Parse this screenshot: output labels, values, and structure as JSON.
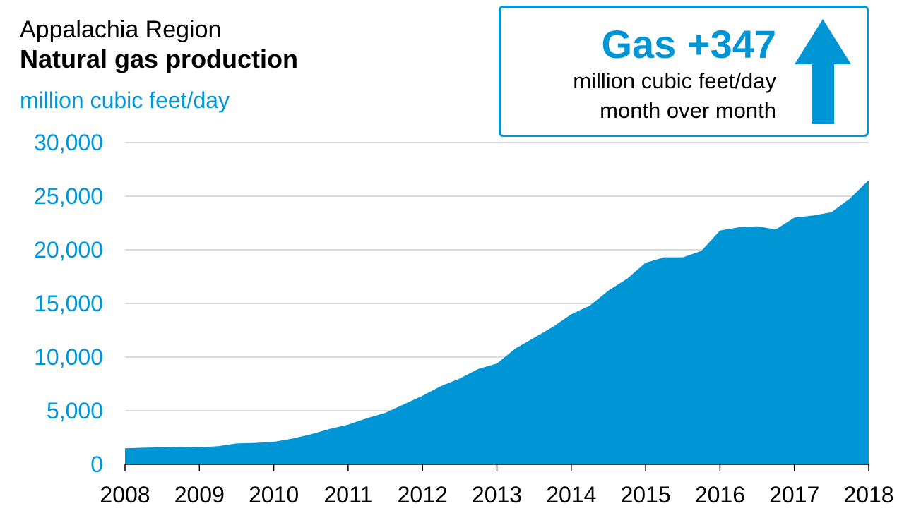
{
  "title_block": {
    "region": "Appalachia Region",
    "title": "Natural gas production",
    "unit": "million cubic feet/day"
  },
  "callout": {
    "headline": "Gas +347",
    "line1": "million cubic feet/day",
    "line2": "month over month",
    "arrow_icon": "arrow-up-icon",
    "color": "#0096d6"
  },
  "chart_data": {
    "type": "area",
    "title": "Natural gas production",
    "ylabel": "million cubic feet/day",
    "xlabel": "",
    "x_ticks": [
      "2008",
      "2009",
      "2010",
      "2011",
      "2012",
      "2013",
      "2014",
      "2015",
      "2016",
      "2017",
      "2018"
    ],
    "y_ticks": [
      "0",
      "5,000",
      "10,000",
      "15,000",
      "20,000",
      "25,000",
      "30,000"
    ],
    "xlim": [
      2008,
      2018
    ],
    "ylim": [
      0,
      30000
    ],
    "grid": "horizontal",
    "fill_color": "#0096d6",
    "series": [
      {
        "x": [
          2008.0,
          2008.25,
          2008.5,
          2008.75,
          2009.0,
          2009.25,
          2009.5,
          2009.75,
          2010.0,
          2010.25,
          2010.5,
          2010.75,
          2011.0,
          2011.25,
          2011.5,
          2011.75,
          2012.0,
          2012.25,
          2012.5,
          2012.75,
          2013.0,
          2013.25,
          2013.5,
          2013.75,
          2014.0,
          2014.25,
          2014.5,
          2014.75,
          2015.0,
          2015.25,
          2015.5,
          2015.75,
          2016.0,
          2016.25,
          2016.5,
          2016.75,
          2017.0,
          2017.25,
          2017.5,
          2017.75,
          2018.0
        ],
        "values": [
          1500,
          1550,
          1600,
          1650,
          1600,
          1700,
          1950,
          2000,
          2100,
          2400,
          2800,
          3300,
          3700,
          4300,
          4800,
          5600,
          6400,
          7300,
          8000,
          8900,
          9400,
          10800,
          11800,
          12800,
          14000,
          14800,
          16200,
          17300,
          18800,
          19300,
          19300,
          19900,
          21800,
          22100,
          22200,
          21900,
          23000,
          23200,
          23500,
          24800,
          26500
        ]
      }
    ]
  }
}
